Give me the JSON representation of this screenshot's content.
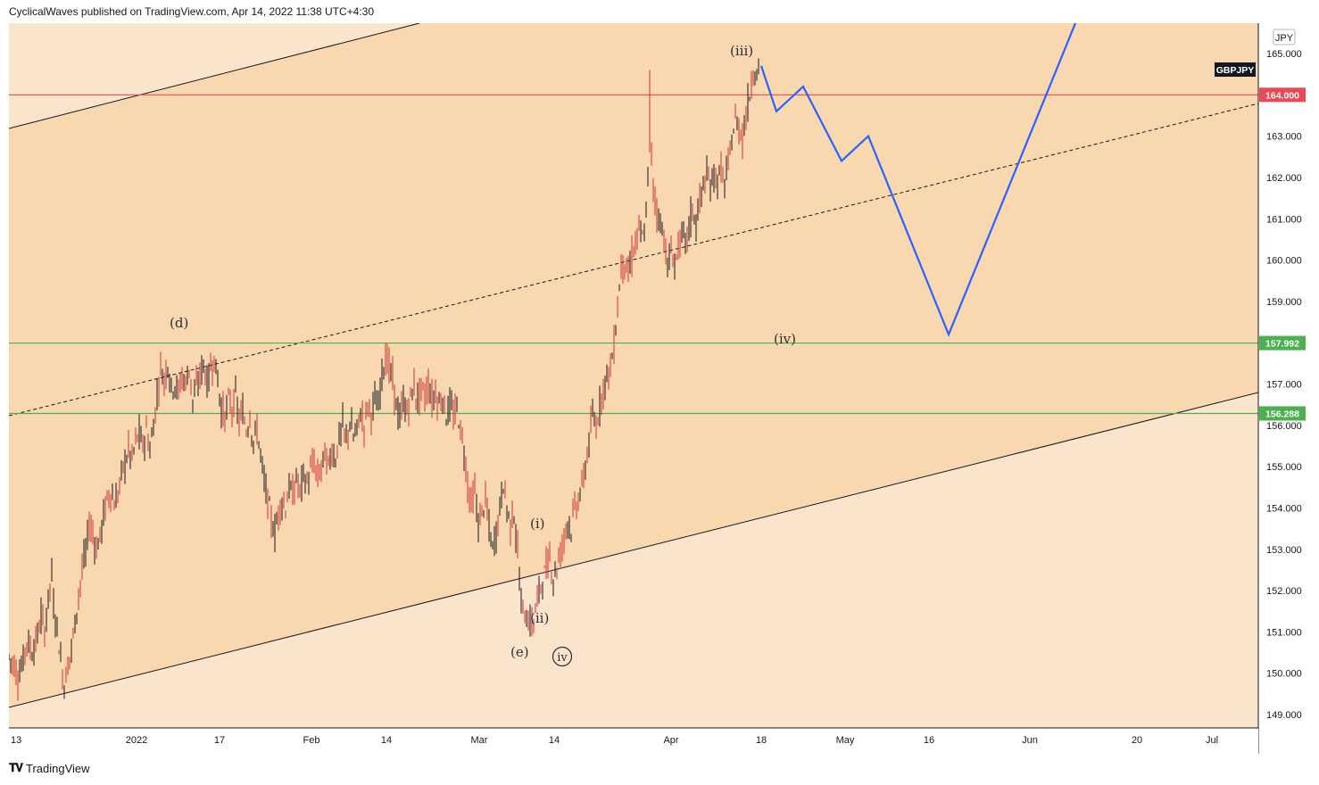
{
  "header": {
    "text": "CyclicalWaves published on TradingView.com, Apr 14, 2022 11:38 UTC+4:30"
  },
  "footer": {
    "brand": "TradingView",
    "logo_icon": "tradingview-logo-icon"
  },
  "chart_data": {
    "type": "candlestick",
    "symbol": "GBPJPY",
    "currency": "JPY",
    "ylim": [
      148.4,
      165.55
    ],
    "y_ticks": [
      "165.000",
      "164.000",
      "163.000",
      "162.000",
      "161.000",
      "160.000",
      "159.000",
      "157.000",
      "156.000",
      "155.000",
      "154.000",
      "153.000",
      "152.000",
      "151.000",
      "150.000",
      "149.000"
    ],
    "x_tick_labels": [
      "13",
      "2022",
      "17",
      "Feb",
      "14",
      "Mar",
      "14",
      "Apr",
      "18",
      "May",
      "16",
      "Jun",
      "20",
      "Jul"
    ],
    "horizontal_levels": [
      {
        "value": 164.0,
        "label": "164.000",
        "color": "#e84a55"
      },
      {
        "value": 157.992,
        "label": "157.992",
        "color": "#4caf50"
      },
      {
        "value": 156.288,
        "label": "156.288",
        "color": "#4caf50"
      }
    ],
    "price_path": [
      [
        0,
        150.4
      ],
      [
        6,
        150.2
      ],
      [
        10,
        149.9
      ],
      [
        16,
        150.3
      ],
      [
        20,
        150.8
      ],
      [
        26,
        150.5
      ],
      [
        32,
        150.9
      ],
      [
        36,
        151.4
      ],
      [
        40,
        151.0
      ],
      [
        44,
        151.8
      ],
      [
        48,
        152.4
      ],
      [
        50,
        151.6
      ],
      [
        54,
        151.1
      ],
      [
        58,
        150.3
      ],
      [
        62,
        149.7
      ],
      [
        66,
        150.2
      ],
      [
        70,
        150.6
      ],
      [
        74,
        151.2
      ],
      [
        78,
        151.9
      ],
      [
        82,
        152.5
      ],
      [
        86,
        152.9
      ],
      [
        90,
        153.6
      ],
      [
        94,
        153.4
      ],
      [
        98,
        153.0
      ],
      [
        102,
        153.3
      ],
      [
        106,
        153.8
      ],
      [
        110,
        154.2
      ],
      [
        114,
        154.4
      ],
      [
        118,
        154.1
      ],
      [
        122,
        154.3
      ],
      [
        126,
        154.8
      ],
      [
        130,
        155.1
      ],
      [
        134,
        155.4
      ],
      [
        138,
        155.2
      ],
      [
        142,
        155.6
      ],
      [
        146,
        155.8
      ],
      [
        150,
        155.5
      ],
      [
        154,
        155.9
      ],
      [
        158,
        155.4
      ],
      [
        162,
        156.0
      ],
      [
        166,
        156.7
      ],
      [
        170,
        157.4
      ],
      [
        174,
        157.1
      ],
      [
        178,
        157.5
      ],
      [
        182,
        156.9
      ],
      [
        186,
        157.0
      ],
      [
        190,
        156.8
      ],
      [
        194,
        157.2
      ],
      [
        198,
        157.0
      ],
      [
        202,
        157.4
      ],
      [
        206,
        156.6
      ],
      [
        210,
        156.9
      ],
      [
        214,
        157.2
      ],
      [
        218,
        157.5
      ],
      [
        222,
        157.0
      ],
      [
        226,
        157.4
      ],
      [
        230,
        157.6
      ],
      [
        234,
        157.1
      ],
      [
        238,
        156.4
      ],
      [
        242,
        156.2
      ],
      [
        246,
        156.6
      ],
      [
        250,
        156.4
      ],
      [
        254,
        156.7
      ],
      [
        258,
        156.1
      ],
      [
        262,
        156.3
      ],
      [
        266,
        155.9
      ],
      [
        270,
        156.2
      ],
      [
        274,
        155.6
      ],
      [
        278,
        155.9
      ],
      [
        282,
        155.3
      ],
      [
        286,
        154.6
      ],
      [
        290,
        154.2
      ],
      [
        294,
        153.7
      ],
      [
        298,
        153.4
      ],
      [
        302,
        153.9
      ],
      [
        306,
        154.2
      ],
      [
        310,
        154.0
      ],
      [
        314,
        154.5
      ],
      [
        318,
        154.3
      ],
      [
        322,
        154.7
      ],
      [
        326,
        154.4
      ],
      [
        330,
        154.8
      ],
      [
        334,
        154.6
      ],
      [
        338,
        154.9
      ],
      [
        342,
        155.1
      ],
      [
        346,
        154.7
      ],
      [
        350,
        155.0
      ],
      [
        354,
        155.3
      ],
      [
        358,
        155.0
      ],
      [
        362,
        155.4
      ],
      [
        366,
        155.2
      ],
      [
        370,
        155.7
      ],
      [
        374,
        156.0
      ],
      [
        378,
        155.6
      ],
      [
        382,
        156.1
      ],
      [
        386,
        155.7
      ],
      [
        390,
        155.9
      ],
      [
        394,
        156.3
      ],
      [
        398,
        156.0
      ],
      [
        402,
        156.5
      ],
      [
        406,
        156.3
      ],
      [
        410,
        156.6
      ],
      [
        414,
        156.4
      ],
      [
        418,
        157.3
      ],
      [
        422,
        157.7
      ],
      [
        426,
        157.4
      ],
      [
        430,
        157.1
      ],
      [
        434,
        156.5
      ],
      [
        438,
        156.1
      ],
      [
        442,
        156.6
      ],
      [
        446,
        156.3
      ],
      [
        450,
        156.7
      ],
      [
        454,
        156.9
      ],
      [
        458,
        156.6
      ],
      [
        462,
        156.9
      ],
      [
        466,
        156.7
      ],
      [
        470,
        157.0
      ],
      [
        474,
        156.6
      ],
      [
        478,
        156.8
      ],
      [
        482,
        156.5
      ],
      [
        486,
        156.7
      ],
      [
        490,
        156.2
      ],
      [
        494,
        156.5
      ],
      [
        498,
        156.2
      ],
      [
        502,
        156.4
      ],
      [
        506,
        155.9
      ],
      [
        510,
        155.4
      ],
      [
        514,
        154.6
      ],
      [
        518,
        154.1
      ],
      [
        522,
        154.4
      ],
      [
        526,
        153.6
      ],
      [
        530,
        153.9
      ],
      [
        534,
        154.2
      ],
      [
        538,
        153.5
      ],
      [
        542,
        153.0
      ],
      [
        546,
        153.4
      ],
      [
        550,
        154.0
      ],
      [
        554,
        154.6
      ],
      [
        558,
        154.0
      ],
      [
        562,
        153.6
      ],
      [
        566,
        153.9
      ],
      [
        570,
        152.9
      ],
      [
        574,
        151.7
      ],
      [
        578,
        151.4
      ],
      [
        582,
        151.3
      ],
      [
        586,
        151.1
      ],
      [
        590,
        151.5
      ],
      [
        594,
        152.0
      ],
      [
        598,
        152.3
      ],
      [
        602,
        152.5
      ],
      [
        606,
        152.8
      ],
      [
        610,
        152.3
      ],
      [
        614,
        152.6
      ],
      [
        618,
        152.9
      ],
      [
        622,
        153.3
      ],
      [
        626,
        153.7
      ],
      [
        630,
        153.5
      ],
      [
        634,
        154.0
      ],
      [
        638,
        154.2
      ],
      [
        642,
        154.5
      ],
      [
        646,
        155.0
      ],
      [
        650,
        155.6
      ],
      [
        654,
        156.2
      ],
      [
        658,
        156.0
      ],
      [
        662,
        156.5
      ],
      [
        666,
        156.9
      ],
      [
        670,
        157.2
      ],
      [
        674,
        157.4
      ],
      [
        678,
        157.9
      ],
      [
        682,
        158.9
      ],
      [
        686,
        159.8
      ],
      [
        690,
        160.0
      ],
      [
        694,
        159.6
      ],
      [
        698,
        160.1
      ],
      [
        702,
        160.4
      ],
      [
        706,
        160.7
      ],
      [
        710,
        160.5
      ],
      [
        714,
        161.0
      ],
      [
        718,
        163.2
      ],
      [
        722,
        161.8
      ],
      [
        726,
        161.2
      ],
      [
        730,
        160.9
      ],
      [
        734,
        160.6
      ],
      [
        738,
        159.8
      ],
      [
        742,
        160.2
      ],
      [
        746,
        159.9
      ],
      [
        750,
        160.3
      ],
      [
        754,
        160.6
      ],
      [
        758,
        160.4
      ],
      [
        762,
        160.8
      ],
      [
        766,
        161.2
      ],
      [
        770,
        160.9
      ],
      [
        774,
        161.4
      ],
      [
        778,
        161.8
      ],
      [
        782,
        162.0
      ],
      [
        786,
        161.8
      ],
      [
        790,
        162.1
      ],
      [
        794,
        161.9
      ],
      [
        798,
        162.2
      ],
      [
        802,
        161.8
      ],
      [
        806,
        162.3
      ],
      [
        810,
        162.9
      ],
      [
        814,
        163.4
      ],
      [
        818,
        163.2
      ],
      [
        822,
        163.0
      ],
      [
        826,
        163.5
      ],
      [
        830,
        164.0
      ],
      [
        834,
        164.6
      ],
      [
        838,
        164.5
      ],
      [
        842,
        164.7
      ]
    ],
    "projection_path": [
      [
        853,
        164.7
      ],
      [
        870,
        163.6
      ],
      [
        900,
        164.2
      ],
      [
        943,
        162.4
      ],
      [
        973,
        163.0
      ],
      [
        1063,
        158.2
      ],
      [
        1210,
        166.0
      ]
    ],
    "wave_labels": [
      "(d)",
      "(iii)",
      "(iv)",
      "(i)",
      "(ii)",
      "(e)",
      "iv"
    ]
  }
}
